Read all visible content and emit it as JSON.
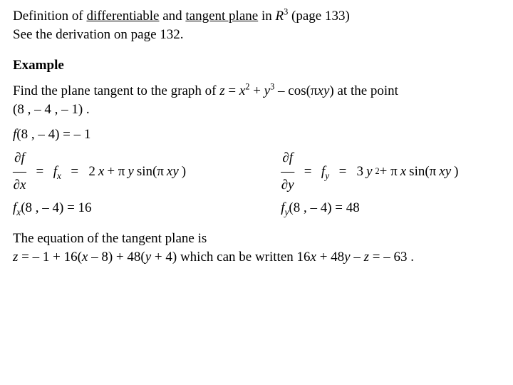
{
  "header": {
    "def_prefix": "Definition of ",
    "term1": "differentiable",
    "and": " and ",
    "term2": "tangent plane",
    "in": " in ",
    "space": "R",
    "space_exp": "3",
    "page_ref": " (page 133)",
    "line2": "See the derivation on page 132."
  },
  "example": {
    "heading": "Example",
    "prompt_a": "Find the plane tangent to the graph of ",
    "prompt_z": "z",
    "prompt_eq": " = ",
    "prompt_x": "x",
    "prompt_xexp": "2",
    "prompt_plus": " + ",
    "prompt_y": "y",
    "prompt_yexp": "3",
    "prompt_minus": " – cos(π",
    "prompt_xy": "xy",
    "prompt_end": ") at the point",
    "point": "(8 , – 4 , – 1) ."
  },
  "fval": {
    "f": "f",
    "args": "(8 , – 4) = ",
    "val": " – 1"
  },
  "dfx": {
    "partial": "∂",
    "f": "f",
    "line": "—",
    "x": "x",
    "eq1": "  =  ",
    "fx_f": "f",
    "fx_sub": "x",
    "eq2": "  =   2",
    "xvar": "x",
    "plus": " + π",
    "yvar": "y",
    "sin": " sin(π",
    "xy": "xy",
    "close": ")"
  },
  "dfy": {
    "partial": "∂",
    "f": "f",
    "line": "—",
    "y": "y",
    "eq1": "  =  ",
    "fy_f": "f",
    "fy_sub": "y",
    "eq2": "  =   3",
    "yvar": "y",
    "yexp": "2",
    "plus": " + π",
    "xvar": "x",
    "sin": " sin(π",
    "xy": "xy",
    "close": ")"
  },
  "fxval": {
    "f": "f",
    "sub": "x",
    "args": "(8 , – 4) =  16"
  },
  "fyval": {
    "f": "f",
    "sub": "y",
    "args": "(8 , – 4) = 48"
  },
  "conclusion": {
    "line1": "The equation of the tangent plane is",
    "z": "z",
    "eq": " = – 1 + 16(",
    "x": "x",
    "mid1": " – 8) + 48(",
    "y": "y",
    "mid2": " + 4) which can be written 16",
    "x2": "x",
    "plus": " + 48",
    "y2": "y",
    "minus": " – ",
    "z2": "z",
    "end": " = – 63 ."
  }
}
